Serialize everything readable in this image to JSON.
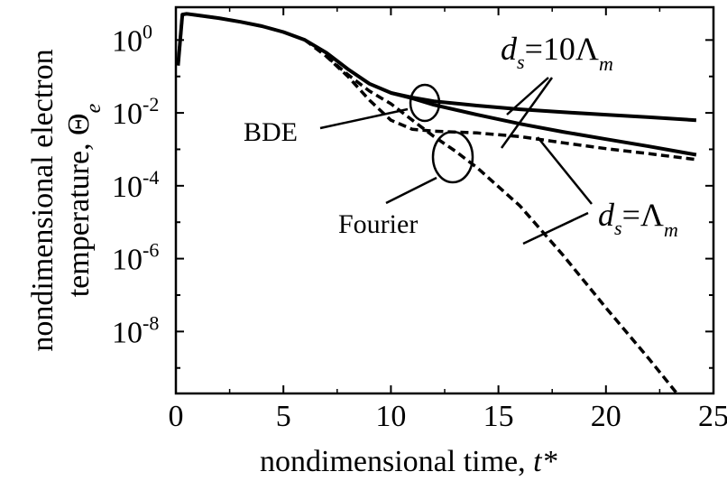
{
  "chart_data": {
    "type": "line",
    "xlabel": "nondimensional time,",
    "xlabel_var": "t*",
    "ylabel_line1": "nondimensional electron",
    "ylabel_line2": "temperature,",
    "ylabel_symbol": "Θ",
    "ylabel_subscript": "e",
    "xlim": [
      0,
      25
    ],
    "ylim_log10": [
      -9.7,
      0.9
    ],
    "y_scale": "log",
    "x_ticks": [
      0,
      5,
      10,
      15,
      20,
      25
    ],
    "y_tick_exponents": [
      0,
      -2,
      -4,
      -6,
      -8
    ],
    "y_tick_base": "10",
    "grid": false,
    "legend": "none",
    "series": [
      {
        "style": "solid",
        "points": [
          [
            0.1,
            -0.7
          ],
          [
            0.3,
            0.7
          ],
          [
            0.5,
            0.72
          ],
          [
            1,
            0.68
          ],
          [
            2,
            0.6
          ],
          [
            3,
            0.5
          ],
          [
            4,
            0.38
          ],
          [
            5,
            0.22
          ],
          [
            6,
            0.0
          ],
          [
            7,
            -0.35
          ],
          [
            8,
            -0.8
          ],
          [
            9,
            -1.2
          ],
          [
            10,
            -1.45
          ],
          [
            11,
            -1.58
          ],
          [
            12,
            -1.68
          ],
          [
            14,
            -1.8
          ],
          [
            16,
            -1.9
          ],
          [
            18,
            -1.98
          ],
          [
            20,
            -2.05
          ],
          [
            22,
            -2.12
          ],
          [
            24.2,
            -2.2
          ]
        ]
      },
      {
        "style": "solid",
        "points": [
          [
            10,
            -1.45
          ],
          [
            11,
            -1.6
          ],
          [
            12,
            -1.78
          ],
          [
            14,
            -2.05
          ],
          [
            16,
            -2.3
          ],
          [
            18,
            -2.52
          ],
          [
            20,
            -2.72
          ],
          [
            22,
            -2.92
          ],
          [
            24.2,
            -3.15
          ]
        ]
      },
      {
        "style": "dashed",
        "points": [
          [
            0.1,
            -0.7
          ],
          [
            0.3,
            0.7
          ],
          [
            0.5,
            0.72
          ],
          [
            1,
            0.68
          ],
          [
            2,
            0.6
          ],
          [
            3,
            0.5
          ],
          [
            4,
            0.38
          ],
          [
            5,
            0.22
          ],
          [
            6,
            0.0
          ],
          [
            7,
            -0.45
          ],
          [
            8,
            -1.0
          ],
          [
            9,
            -1.65
          ],
          [
            10,
            -2.2
          ],
          [
            11,
            -2.45
          ],
          [
            12,
            -2.5
          ],
          [
            14,
            -2.55
          ],
          [
            16,
            -2.65
          ],
          [
            18,
            -2.82
          ],
          [
            20,
            -2.98
          ],
          [
            22,
            -3.12
          ],
          [
            24.2,
            -3.28
          ]
        ]
      },
      {
        "style": "dashed",
        "points": [
          [
            7,
            -0.45
          ],
          [
            8,
            -0.95
          ],
          [
            9,
            -1.4
          ],
          [
            10,
            -1.75
          ],
          [
            11,
            -2.2
          ],
          [
            12,
            -2.65
          ],
          [
            13,
            -3.05
          ],
          [
            14,
            -3.5
          ],
          [
            16,
            -4.55
          ],
          [
            18,
            -5.9
          ],
          [
            20,
            -7.35
          ],
          [
            22,
            -8.75
          ],
          [
            23.3,
            -9.7
          ]
        ]
      }
    ],
    "annotations": {
      "bde": "BDE",
      "fourier": "Fourier",
      "ds10_d": "d",
      "ds10_sub": "s",
      "ds10_rest": "=10Λ",
      "ds10_m": "m",
      "ds1_d": "d",
      "ds1_sub": "s",
      "ds1_rest": "=Λ",
      "ds1_m": "m"
    }
  }
}
